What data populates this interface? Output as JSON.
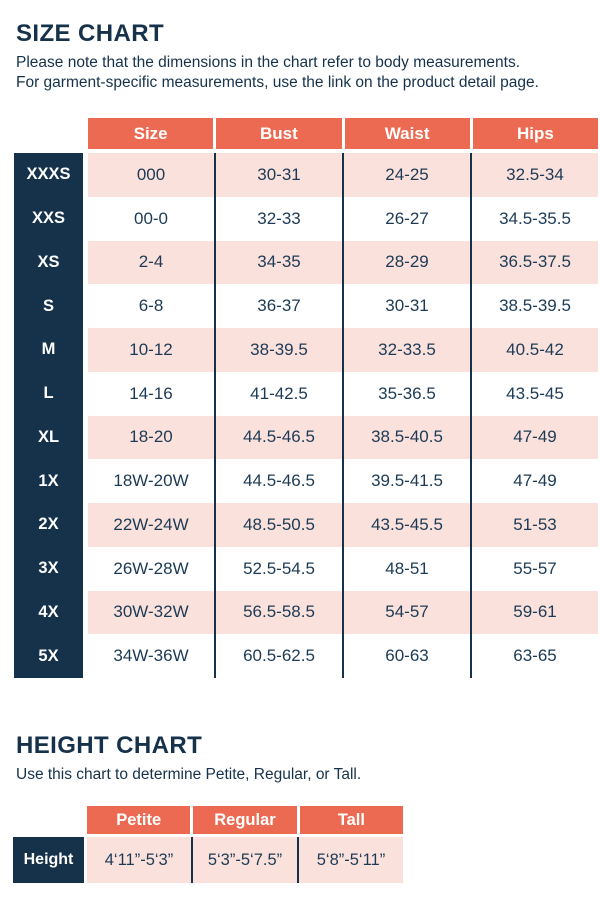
{
  "colors": {
    "coral": "#ED6A52",
    "pink": "#FBE1DC",
    "navy": "#16324B",
    "white": "#FFFFFF"
  },
  "size_chart": {
    "title": "SIZE CHART",
    "note_line1": "Please note that the dimensions in the chart refer to body measurements.",
    "note_line2": "For garment-specific measurements, use the link on the product detail page.",
    "columns": [
      "Size",
      "Bust",
      "Waist",
      "Hips"
    ],
    "rows": [
      {
        "label": "XXXS",
        "size": "000",
        "bust": "30-31",
        "waist": "24-25",
        "hips": "32.5-34"
      },
      {
        "label": "XXS",
        "size": "00-0",
        "bust": "32-33",
        "waist": "26-27",
        "hips": "34.5-35.5"
      },
      {
        "label": "XS",
        "size": "2-4",
        "bust": "34-35",
        "waist": "28-29",
        "hips": "36.5-37.5"
      },
      {
        "label": "S",
        "size": "6-8",
        "bust": "36-37",
        "waist": "30-31",
        "hips": "38.5-39.5"
      },
      {
        "label": "M",
        "size": "10-12",
        "bust": "38-39.5",
        "waist": "32-33.5",
        "hips": "40.5-42"
      },
      {
        "label": "L",
        "size": "14-16",
        "bust": "41-42.5",
        "waist": "35-36.5",
        "hips": "43.5-45"
      },
      {
        "label": "XL",
        "size": "18-20",
        "bust": "44.5-46.5",
        "waist": "38.5-40.5",
        "hips": "47-49"
      },
      {
        "label": "1X",
        "size": "18W-20W",
        "bust": "44.5-46.5",
        "waist": "39.5-41.5",
        "hips": "47-49"
      },
      {
        "label": "2X",
        "size": "22W-24W",
        "bust": "48.5-50.5",
        "waist": "43.5-45.5",
        "hips": "51-53"
      },
      {
        "label": "3X",
        "size": "26W-28W",
        "bust": "52.5-54.5",
        "waist": "48-51",
        "hips": "55-57"
      },
      {
        "label": "4X",
        "size": "30W-32W",
        "bust": "56.5-58.5",
        "waist": "54-57",
        "hips": "59-61"
      },
      {
        "label": "5X",
        "size": "34W-36W",
        "bust": "60.5-62.5",
        "waist": "60-63",
        "hips": "63-65"
      }
    ]
  },
  "height_chart": {
    "title": "HEIGHT CHART",
    "note": "Use this chart to determine Petite, Regular, or Tall.",
    "columns": [
      "Petite",
      "Regular",
      "Tall"
    ],
    "row_label": "Height",
    "values": [
      "4‘11”-5‘3”",
      "5‘3”-5‘7.5”",
      "5‘8”-5‘11”"
    ]
  }
}
